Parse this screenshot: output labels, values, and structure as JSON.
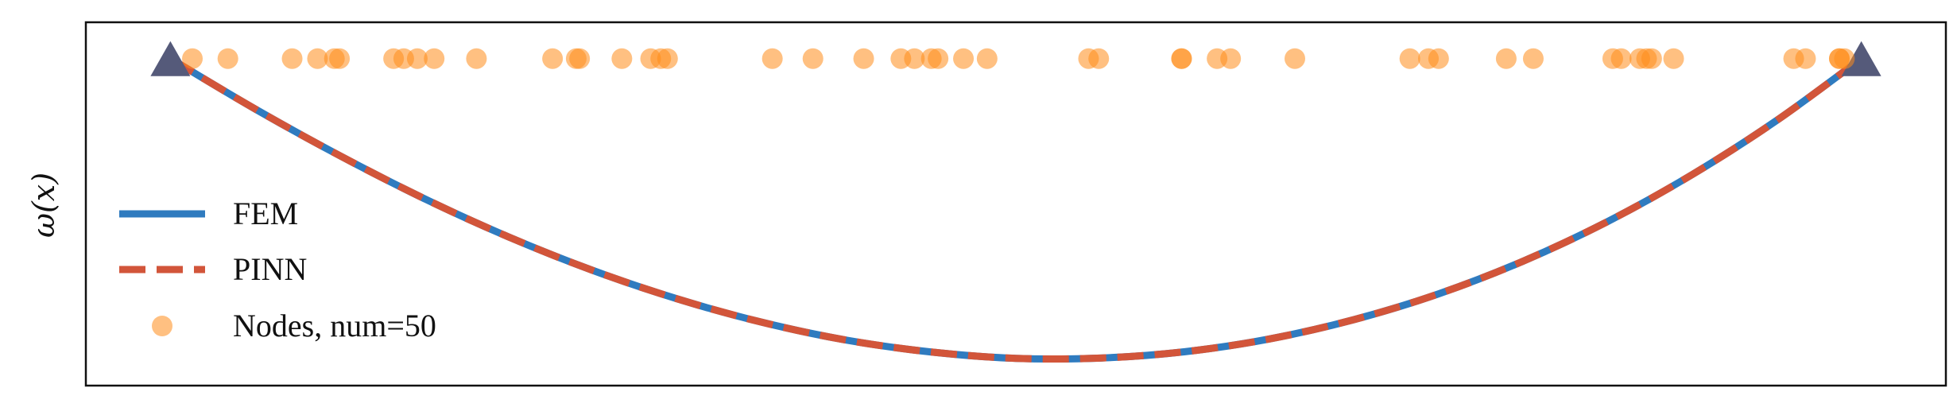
{
  "chart_data": {
    "type": "line",
    "title": "",
    "xlabel": "",
    "ylabel": "ω(x)",
    "xlim": [
      -0.05,
      1.05
    ],
    "ylim": [
      -1.08,
      0.12
    ],
    "grid": false,
    "legend_position": "lower-left",
    "ticks_shown": false,
    "colors": {
      "fem": "#2f7bbf",
      "pinn": "#d2553a",
      "nodes": "#ff8c1a",
      "supports": "#555a7a",
      "frame": "#111111"
    },
    "series": [
      {
        "name": "FEM",
        "style": "solid",
        "x": [
          0.0,
          0.05,
          0.1,
          0.15,
          0.2,
          0.25,
          0.3,
          0.35,
          0.4,
          0.45,
          0.5,
          0.55,
          0.6,
          0.65,
          0.7,
          0.75,
          0.8,
          0.85,
          0.9,
          0.95,
          1.0
        ],
        "y": [
          0.0,
          -0.166,
          -0.32,
          -0.462,
          -0.589,
          -0.7,
          -0.794,
          -0.871,
          -0.93,
          -0.969,
          -0.99,
          -0.989,
          -0.968,
          -0.926,
          -0.862,
          -0.777,
          -0.669,
          -0.538,
          -0.383,
          -0.204,
          0.0
        ]
      },
      {
        "name": "PINN",
        "style": "dashed",
        "x": [
          0.0,
          0.05,
          0.1,
          0.15,
          0.2,
          0.25,
          0.3,
          0.35,
          0.4,
          0.45,
          0.5,
          0.55,
          0.6,
          0.65,
          0.7,
          0.75,
          0.8,
          0.85,
          0.9,
          0.95,
          1.0
        ],
        "y": [
          0.0,
          -0.166,
          -0.32,
          -0.462,
          -0.589,
          -0.7,
          -0.794,
          -0.871,
          -0.93,
          -0.969,
          -0.99,
          -0.989,
          -0.968,
          -0.926,
          -0.862,
          -0.777,
          -0.669,
          -0.538,
          -0.383,
          -0.204,
          0.0
        ]
      }
    ],
    "nodes": {
      "name": "Nodes, num=50",
      "y": 0.0,
      "x": [
        0.013,
        0.034,
        0.072,
        0.087,
        0.097,
        0.1,
        0.132,
        0.138,
        0.146,
        0.156,
        0.181,
        0.226,
        0.24,
        0.242,
        0.267,
        0.284,
        0.29,
        0.294,
        0.356,
        0.38,
        0.41,
        0.432,
        0.44,
        0.45,
        0.454,
        0.469,
        0.483,
        0.543,
        0.549,
        0.598,
        0.598,
        0.619,
        0.627,
        0.665,
        0.733,
        0.744,
        0.75,
        0.79,
        0.806,
        0.853,
        0.858,
        0.869,
        0.873,
        0.876,
        0.889,
        0.96,
        0.967,
        0.987,
        0.987,
        0.99
      ]
    },
    "supports": {
      "x": [
        0.0,
        1.0
      ],
      "y": [
        0.0,
        0.0
      ]
    }
  }
}
